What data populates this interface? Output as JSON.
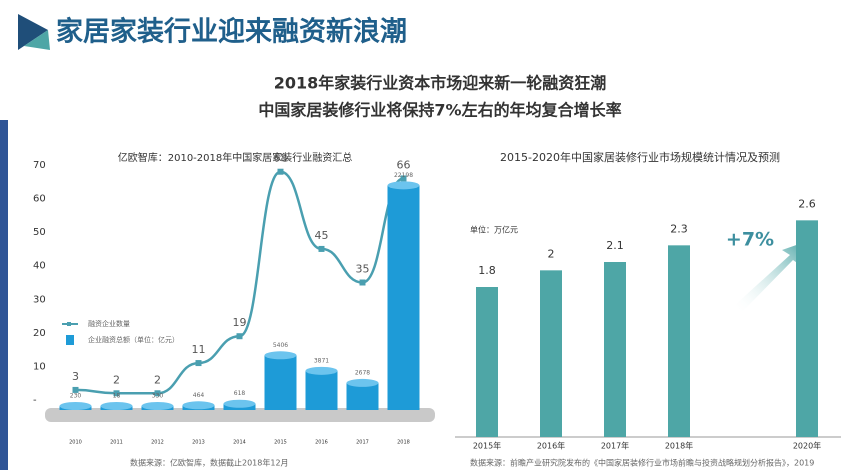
{
  "header": {
    "title": "家居家装行业迎来融资新浪潮",
    "subtitle_lines": [
      "2018年家装行业资本市场迎来新一轮融资狂潮",
      "中国家居装修行业将保持7%左右的年均复合增长率"
    ]
  },
  "chart_data": [
    {
      "type": "combo",
      "title": "亿欧智库：2010-2018年中国家居家装行业融资汇总",
      "categories": [
        "2010",
        "2011",
        "2012",
        "2013",
        "2014",
        "2015",
        "2016",
        "2017",
        "2018"
      ],
      "series": [
        {
          "name": "融资企业数量",
          "kind": "line",
          "color": "#4a9fb0",
          "values": [
            3,
            2,
            2,
            11,
            19,
            68,
            45,
            35,
            66
          ]
        },
        {
          "name": "企业融资总额（单位：亿元）",
          "kind": "bar",
          "axis": "y2",
          "color": "#1e9bd7",
          "values": [
            230,
            18,
            330,
            464,
            618,
            5406,
            3871,
            2678,
            22198
          ]
        }
      ],
      "ylim": [
        0,
        70
      ],
      "yticks": [
        {
          "value": 0,
          "label": "-"
        },
        10,
        20,
        30,
        40,
        50,
        60,
        70
      ],
      "y2lim": [
        0,
        25000
      ],
      "source": "数据来源：亿欧智库，数据截止2018年12月"
    },
    {
      "type": "bar",
      "title": "2015-2020年中国家居装修行业市场规模统计情况及预测",
      "categories": [
        "2015年",
        "2016年",
        "2017年",
        "2018年",
        null,
        "2020年"
      ],
      "values": [
        1.8,
        2,
        2.1,
        2.3,
        null,
        2.6
      ],
      "color": "#4ea6a6",
      "ylim": [
        0,
        3
      ],
      "annotations": [
        "单位：万亿元",
        "+7%"
      ],
      "source": "数据来源：前瞻产业研究院发布的《中国家居装修行业市场前瞻与投资战略规划分析报告》，2019"
    }
  ]
}
